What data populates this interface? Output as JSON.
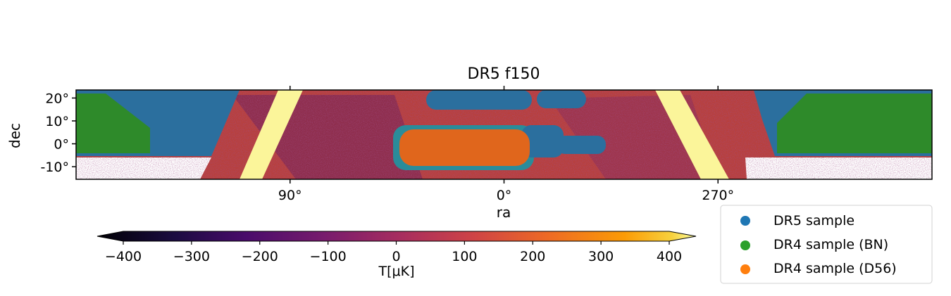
{
  "chart_data": {
    "type": "heatmap",
    "title": "DR5 f150",
    "xlabel": "ra",
    "ylabel": "dec",
    "x_ticks": [
      {
        "label": "90°",
        "ra": 90
      },
      {
        "label": "0°",
        "ra": 0
      },
      {
        "label": "270°",
        "ra": 270
      }
    ],
    "y_ticks": [
      {
        "label": "20°",
        "dec": 20
      },
      {
        "label": "10°",
        "dec": 10
      },
      {
        "label": "0°",
        "dec": 0
      },
      {
        "label": "-10°",
        "dec": -10
      }
    ],
    "colorbar": {
      "label": "T[μK]",
      "min": -400,
      "max": 400,
      "ticks": [
        {
          "label": "−400",
          "value": -400
        },
        {
          "label": "−300",
          "value": -300
        },
        {
          "label": "−200",
          "value": -200
        },
        {
          "label": "−100",
          "value": -100
        },
        {
          "label": "0",
          "value": 0
        },
        {
          "label": "100",
          "value": 100
        },
        {
          "label": "200",
          "value": 200
        },
        {
          "label": "300",
          "value": 300
        },
        {
          "label": "400",
          "value": 400
        }
      ],
      "colormap": "inferno",
      "extend": "both"
    },
    "series": [
      {
        "name": "DR5 sample",
        "color": "#1f77b4"
      },
      {
        "name": "DR4 sample (BN)",
        "color": "#2ca02c"
      },
      {
        "name": "DR4 sample (D56)",
        "color": "#ff7f0e"
      }
    ],
    "legend_position": "bottom-right"
  }
}
